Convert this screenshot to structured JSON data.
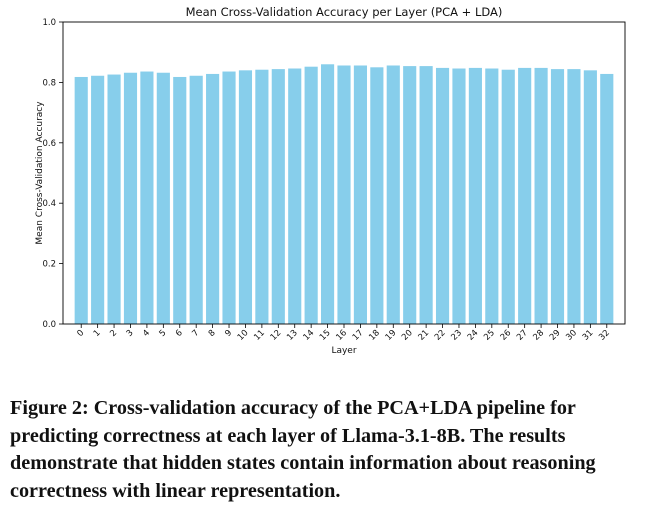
{
  "chart_data": {
    "type": "bar",
    "title": "Mean Cross-Validation Accuracy per Layer (PCA + LDA)",
    "xlabel": "Layer",
    "ylabel": "Mean Cross-Validation Accuracy",
    "categories": [
      "0",
      "1",
      "2",
      "3",
      "4",
      "5",
      "6",
      "7",
      "8",
      "9",
      "10",
      "11",
      "12",
      "13",
      "14",
      "15",
      "16",
      "17",
      "18",
      "19",
      "20",
      "21",
      "22",
      "23",
      "24",
      "25",
      "26",
      "27",
      "28",
      "29",
      "30",
      "31",
      "32"
    ],
    "values": [
      0.818,
      0.822,
      0.826,
      0.832,
      0.836,
      0.832,
      0.818,
      0.822,
      0.828,
      0.836,
      0.84,
      0.842,
      0.844,
      0.846,
      0.852,
      0.86,
      0.856,
      0.856,
      0.85,
      0.856,
      0.854,
      0.854,
      0.848,
      0.846,
      0.848,
      0.846,
      0.842,
      0.848,
      0.848,
      0.844,
      0.844,
      0.84,
      0.828
    ],
    "ylim": [
      0.0,
      1.0
    ],
    "yticks": [
      "0.0",
      "0.2",
      "0.4",
      "0.6",
      "0.8",
      "1.0"
    ],
    "bar_color": "#87CEEB",
    "grid": false,
    "legend": "none"
  },
  "caption": "Figure 2: Cross-validation accuracy of the PCA+LDA pipeline for predicting correctness at each layer of Llama-3.1-8B. The results demonstrate that hidden states contain information about reasoning correctness with linear representation."
}
